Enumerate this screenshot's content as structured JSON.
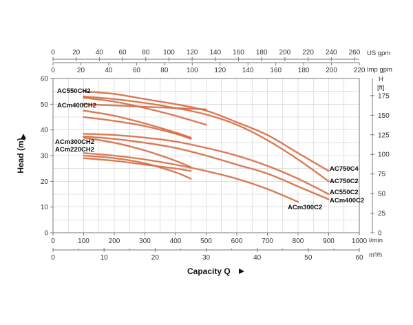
{
  "chart_data": {
    "type": "line",
    "colors": {
      "curve": "#e0744a",
      "curve_shadow": "#b3542b",
      "grid": "#cccccc",
      "axis": "#777777"
    },
    "xlabel": "Capacity Q",
    "ylabel": "Head (m)",
    "xlim": [
      0,
      1000
    ],
    "ylim": [
      0,
      60
    ],
    "x_ticks_lmin": [
      0,
      100,
      200,
      300,
      400,
      500,
      600,
      700,
      800,
      900,
      1000
    ],
    "x_unit_lmin": "l/min",
    "x_ticks_m3h": [
      0,
      10,
      20,
      30,
      40,
      50,
      60
    ],
    "x_unit_m3h": "m³/h",
    "x_ticks_usgpm": [
      0,
      20,
      40,
      60,
      80,
      100,
      120,
      140,
      160,
      180,
      200,
      220,
      240,
      260
    ],
    "x_unit_usgpm": "US gpm",
    "x_ticks_impgpm": [
      0,
      20,
      40,
      60,
      80,
      100,
      120,
      140,
      160,
      180,
      200,
      220
    ],
    "x_unit_impgpm": "Imp gpm",
    "y_ticks_m": [
      0,
      10,
      20,
      30,
      40,
      50,
      60
    ],
    "y_ticks_ft": [
      0,
      25,
      50,
      75,
      100,
      125,
      150,
      175
    ],
    "y_unit_ft_h": "H",
    "y_unit_ft": "[ft]",
    "series": [
      {
        "name": "AC550CH2",
        "x": [
          100,
          200,
          300,
          400,
          500
        ],
        "y": [
          52.5,
          51,
          48.5,
          45.5,
          42
        ]
      },
      {
        "name": "",
        "x": [
          100,
          200,
          300,
          400,
          500
        ],
        "y": [
          50,
          49.5,
          49,
          48.5,
          48
        ]
      },
      {
        "name": "ACm400CH2",
        "x": [
          100,
          200,
          300,
          400,
          450
        ],
        "y": [
          47.5,
          45.5,
          42.5,
          39,
          37
        ]
      },
      {
        "name": "",
        "x": [
          100,
          200,
          300,
          400,
          450
        ],
        "y": [
          45,
          43.5,
          41.5,
          38.5,
          36.5
        ]
      },
      {
        "name": "ACm300CH2",
        "x": [
          100,
          200,
          300,
          400,
          450
        ],
        "y": [
          37,
          35,
          32,
          28,
          25.5
        ]
      },
      {
        "name": "ACm220CH2",
        "x": [
          100,
          200,
          300,
          400,
          450
        ],
        "y": [
          30,
          29,
          27,
          23.5,
          21
        ]
      },
      {
        "name": "",
        "x": [
          100,
          200,
          300,
          400,
          450
        ],
        "y": [
          29,
          28,
          26.5,
          25,
          24
        ]
      },
      {
        "name": "AC750C4",
        "x": [
          100,
          200,
          300,
          400,
          500,
          600,
          700,
          800,
          900
        ],
        "y": [
          55,
          54,
          52,
          50,
          47.5,
          43,
          38,
          31,
          24
        ]
      },
      {
        "name": "AC750C2",
        "x": [
          100,
          200,
          300,
          400,
          500,
          600,
          700,
          800,
          900
        ],
        "y": [
          53,
          52,
          50.5,
          48.5,
          46,
          42,
          36,
          28.5,
          20
        ]
      },
      {
        "name": "AC550C2",
        "x": [
          100,
          200,
          300,
          400,
          500,
          600,
          700,
          800,
          900
        ],
        "y": [
          38.5,
          38,
          37,
          35.5,
          33,
          30,
          26,
          21,
          15
        ]
      },
      {
        "name": "ACm400C2",
        "x": [
          100,
          200,
          300,
          400,
          500,
          600,
          700,
          800,
          900
        ],
        "y": [
          37.5,
          36.5,
          35,
          33,
          30,
          26.5,
          23,
          18,
          13
        ]
      },
      {
        "name": "ACm300C2",
        "x": [
          100,
          200,
          300,
          400,
          500,
          600,
          700,
          800
        ],
        "y": [
          31,
          30,
          28.5,
          26.5,
          24,
          21,
          17,
          12
        ]
      }
    ]
  }
}
